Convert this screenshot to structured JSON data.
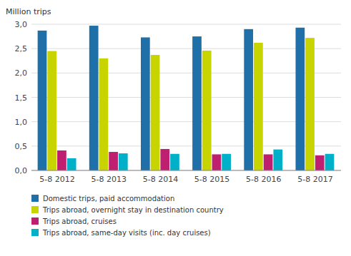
{
  "chart_data": {
    "type": "bar",
    "ylabel": "Million trips",
    "categories": [
      "5-8 2012",
      "5-8 2013",
      "5-8 2014",
      "5-8 2015",
      "5-8 2016",
      "5-8 2017"
    ],
    "series": [
      {
        "name": "Domestic trips, paid accommodation",
        "color": "#1f6fa8",
        "values": [
          2.87,
          2.97,
          2.73,
          2.75,
          2.9,
          2.93
        ]
      },
      {
        "name": "Trips abroad, overnight stay in destination country",
        "color": "#c8d400",
        "values": [
          2.45,
          2.3,
          2.37,
          2.46,
          2.62,
          2.72
        ]
      },
      {
        "name": "Trips abroad, cruises",
        "color": "#be1f6e",
        "values": [
          0.41,
          0.38,
          0.44,
          0.33,
          0.33,
          0.31
        ]
      },
      {
        "name": "Trips abroad, same-day visits (inc. day cruises)",
        "color": "#00b0c8",
        "values": [
          0.25,
          0.35,
          0.34,
          0.34,
          0.43,
          0.34
        ]
      }
    ],
    "ylim": [
      0,
      3.0
    ],
    "yticks": [
      {
        "value": 0.0,
        "label": "0,0"
      },
      {
        "value": 0.5,
        "label": "0,5"
      },
      {
        "value": 1.0,
        "label": "1,0"
      },
      {
        "value": 1.5,
        "label": "1,5"
      },
      {
        "value": 2.0,
        "label": "2,0"
      },
      {
        "value": 2.5,
        "label": "2,5"
      },
      {
        "value": 3.0,
        "label": "3,0"
      }
    ],
    "grid": true,
    "legend": "bottom"
  }
}
